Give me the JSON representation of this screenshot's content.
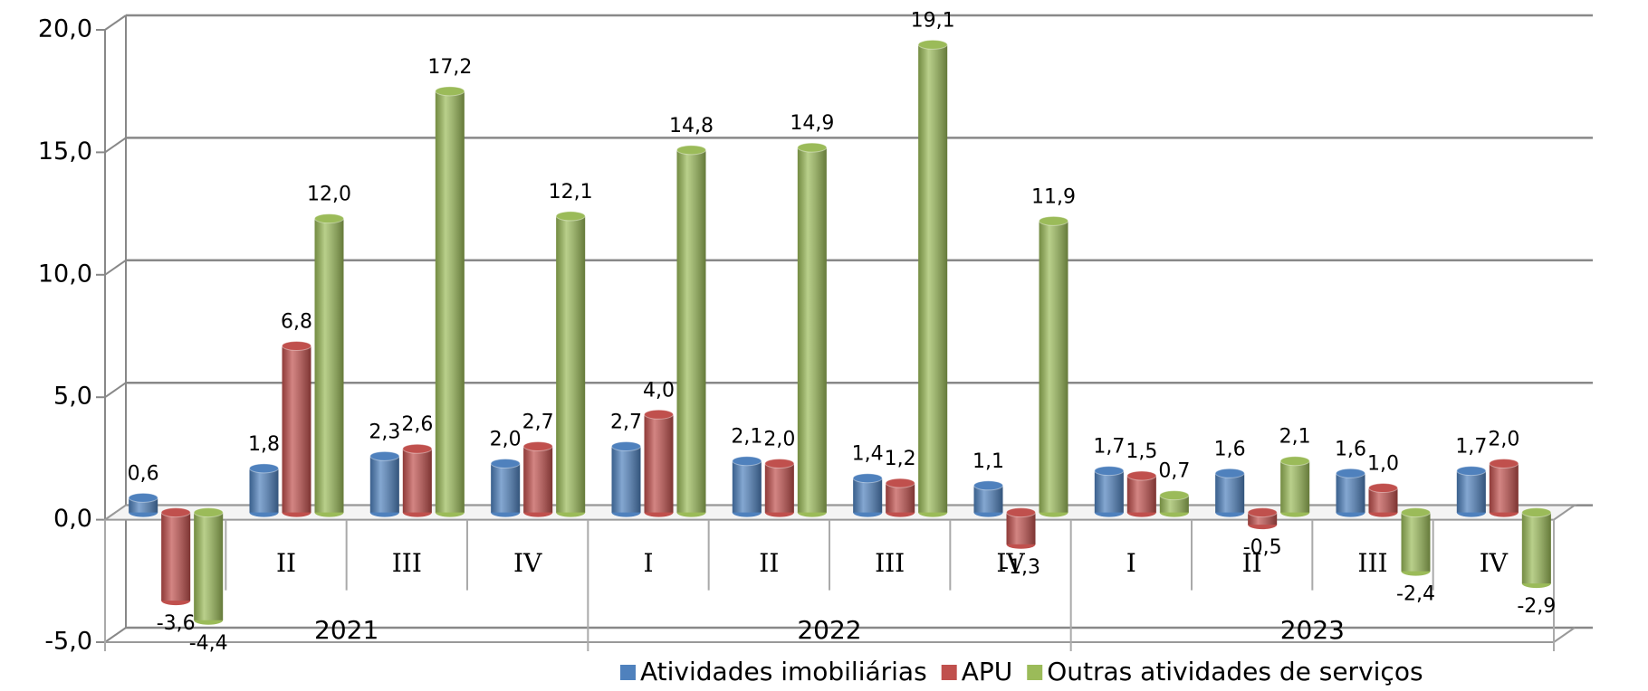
{
  "chart_data": {
    "type": "bar",
    "categories": [
      "I",
      "II",
      "III",
      "IV",
      "I",
      "II",
      "III",
      "IV",
      "I",
      "II",
      "III",
      "IV"
    ],
    "groups": [
      "2021",
      "2022",
      "2023"
    ],
    "series": [
      {
        "name": "Atividades imobiliárias",
        "color": "#4f81bd",
        "values": [
          0.6,
          1.8,
          2.3,
          2.0,
          2.7,
          2.1,
          1.4,
          1.1,
          1.7,
          1.6,
          1.6,
          1.7
        ],
        "value_labels": [
          "0,6",
          "1,8",
          "2,3",
          "2,0",
          "2,7",
          "2,1",
          "1,4",
          "1,1",
          "1,7",
          "1,6",
          "1,6",
          "1,7"
        ]
      },
      {
        "name": "APU",
        "color": "#c0504d",
        "values": [
          -3.6,
          6.8,
          2.6,
          2.7,
          4.0,
          2.0,
          1.2,
          -1.3,
          1.5,
          -0.5,
          1.0,
          2.0
        ],
        "value_labels": [
          "-3,6",
          "6,8",
          "2,6",
          "2,7",
          "4,0",
          "2,0",
          "1,2",
          "-1,3",
          "1,5",
          "-0,5",
          "1,0",
          "2,0"
        ]
      },
      {
        "name": "Outras atividades de serviços",
        "color": "#9bbb59",
        "values": [
          -4.4,
          12.0,
          17.2,
          12.1,
          14.8,
          14.9,
          19.1,
          11.9,
          0.7,
          2.1,
          -2.4,
          -2.9
        ],
        "value_labels": [
          "-4,4",
          "12,0",
          "17,2",
          "12,1",
          "14,8",
          "14,9",
          "19,1",
          "11,9",
          "0,7",
          "2,1",
          "-2,4",
          "-2,9"
        ]
      }
    ],
    "ylim": [
      -5,
      20
    ],
    "yticks": [
      {
        "value": -5,
        "label": "-5,0"
      },
      {
        "value": 0,
        "label": "0,0"
      },
      {
        "value": 5,
        "label": "5,0"
      },
      {
        "value": 10,
        "label": "10,0"
      },
      {
        "value": 15,
        "label": "15,0"
      },
      {
        "value": 20,
        "label": "20,0"
      }
    ],
    "grid": true,
    "legend": "bottom-right"
  }
}
